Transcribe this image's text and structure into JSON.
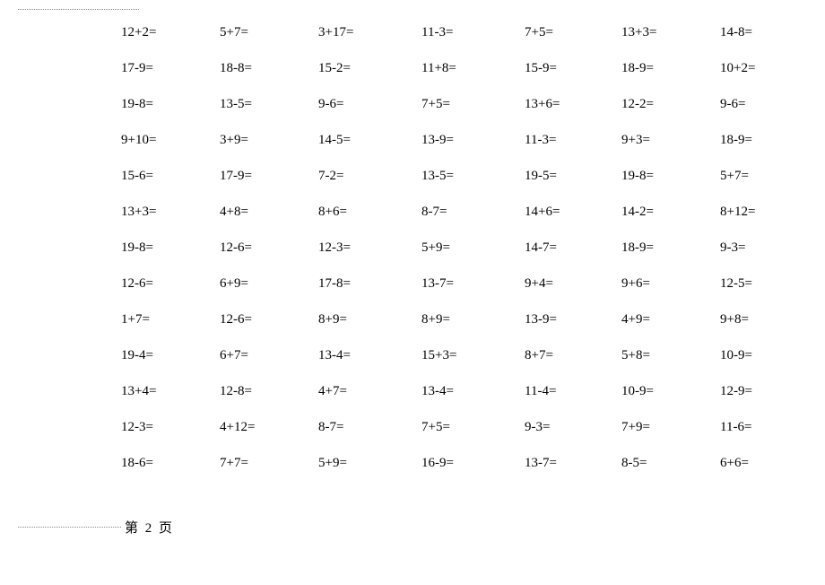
{
  "page": {
    "footer_label": "第 2 页"
  },
  "worksheet": {
    "type": "table",
    "columns": 7,
    "text_color": "#000000",
    "font_size": 15,
    "background_color": "#ffffff",
    "rule_color": "#888888",
    "rows": [
      [
        "12+2=",
        "5+7=",
        "3+17=",
        "11-3=",
        "7+5=",
        "13+3=",
        "14-8="
      ],
      [
        "17-9=",
        "18-8=",
        "15-2=",
        "11+8=",
        "15-9=",
        "18-9=",
        "10+2="
      ],
      [
        "19-8=",
        "13-5=",
        "9-6=",
        "7+5=",
        "13+6=",
        "12-2=",
        "9-6="
      ],
      [
        "9+10=",
        "3+9=",
        "14-5=",
        "13-9=",
        "11-3=",
        "9+3=",
        "18-9="
      ],
      [
        "15-6=",
        "17-9=",
        "7-2=",
        "13-5=",
        "19-5=",
        "19-8=",
        "5+7="
      ],
      [
        "13+3=",
        "4+8=",
        "8+6=",
        "8-7=",
        "14+6=",
        "14-2=",
        "8+12="
      ],
      [
        "19-8=",
        "12-6=",
        "12-3=",
        "5+9=",
        "14-7=",
        "18-9=",
        "9-3="
      ],
      [
        "12-6=",
        "6+9=",
        "17-8=",
        "13-7=",
        "9+4=",
        "9+6=",
        "12-5="
      ],
      [
        "1+7=",
        "12-6=",
        "8+9=",
        "8+9=",
        "13-9=",
        "4+9=",
        "9+8="
      ],
      [
        "19-4=",
        "6+7=",
        "13-4=",
        "15+3=",
        "8+7=",
        "5+8=",
        "10-9="
      ],
      [
        "13+4=",
        "12-8=",
        "4+7=",
        "13-4=",
        "11-4=",
        "10-9=",
        "12-9="
      ],
      [
        "12-3=",
        "4+12=",
        "8-7=",
        "7+5=",
        "9-3=",
        "7+9=",
        "11-6="
      ],
      [
        "18-6=",
        "7+7=",
        "5+9=",
        "16-9=",
        "13-7=",
        "8-5=",
        "6+6="
      ]
    ]
  }
}
